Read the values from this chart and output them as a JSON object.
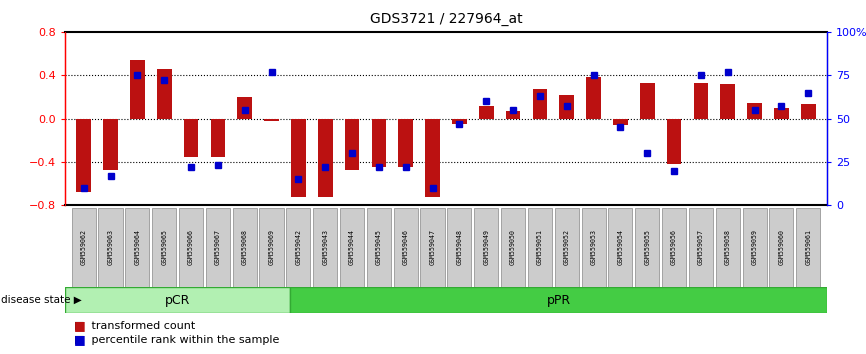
{
  "title": "GDS3721 / 227964_at",
  "samples": [
    "GSM559062",
    "GSM559063",
    "GSM559064",
    "GSM559065",
    "GSM559066",
    "GSM559067",
    "GSM559068",
    "GSM559069",
    "GSM559042",
    "GSM559043",
    "GSM559044",
    "GSM559045",
    "GSM559046",
    "GSM559047",
    "GSM559048",
    "GSM559049",
    "GSM559050",
    "GSM559051",
    "GSM559052",
    "GSM559053",
    "GSM559054",
    "GSM559055",
    "GSM559056",
    "GSM559057",
    "GSM559058",
    "GSM559059",
    "GSM559060",
    "GSM559061"
  ],
  "red_bars": [
    -0.68,
    -0.47,
    0.54,
    0.46,
    -0.35,
    -0.35,
    0.2,
    -0.02,
    -0.72,
    -0.72,
    -0.47,
    -0.45,
    -0.45,
    -0.72,
    -0.05,
    0.12,
    0.07,
    0.27,
    0.22,
    0.38,
    -0.06,
    0.33,
    -0.42,
    0.33,
    0.32,
    0.14,
    0.1,
    0.13
  ],
  "blue_dots": [
    10,
    17,
    75,
    72,
    22,
    23,
    55,
    77,
    15,
    22,
    30,
    22,
    22,
    10,
    47,
    60,
    55,
    63,
    57,
    75,
    45,
    30,
    20,
    75,
    77,
    55,
    57,
    65
  ],
  "pcr_count": 8,
  "group1_label": "pCR",
  "group1_color": "#b2f0b2",
  "group2_label": "pPR",
  "group2_color": "#44cc44",
  "bar_color": "#bb1111",
  "dot_color": "#0000cc",
  "ylim_left": [
    -0.8,
    0.8
  ],
  "ylim_right": [
    0,
    100
  ],
  "yticks_left": [
    -0.8,
    -0.4,
    0.0,
    0.4,
    0.8
  ],
  "yticks_right": [
    0,
    25,
    50,
    75,
    100
  ],
  "ytick_labels_right": [
    "0",
    "25",
    "50",
    "75",
    "100%"
  ],
  "dotted_lines": [
    -0.4,
    0.0,
    0.4
  ],
  "legend_red": "transformed count",
  "legend_blue": "percentile rank within the sample",
  "disease_state_label": "disease state"
}
